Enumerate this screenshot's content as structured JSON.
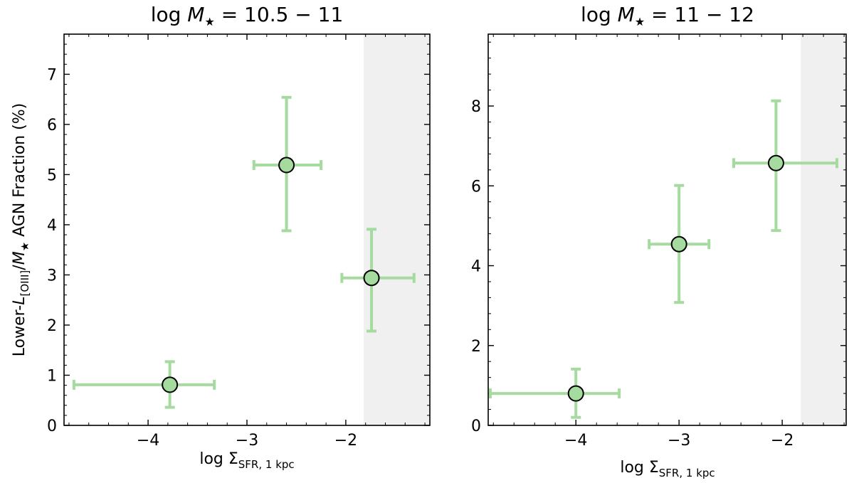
{
  "chart_data": [
    {
      "type": "scatter",
      "title": {
        "prefix": "log ",
        "mass": "M",
        "star": "★",
        "range": " = 10.5 − 11"
      },
      "xlabel": {
        "main": "log Σ",
        "sub": "SFR, 1 kpc"
      },
      "ylabel": {
        "pre": "Lower-",
        "L": "L",
        "Lsub": "[OIII]",
        "slash": "/",
        "M": "M",
        "Msub": "★",
        "post": " AGN Fraction (%)"
      },
      "xlim": [
        -4.85,
        -1.15
      ],
      "ylim": [
        0,
        7.8
      ],
      "xticks": [
        -4,
        -3,
        -2
      ],
      "xtick_labels": [
        "−4",
        "−3",
        "−2"
      ],
      "yticks": [
        0,
        1,
        2,
        3,
        4,
        5,
        6,
        7
      ],
      "ytick_labels": [
        "0",
        "1",
        "2",
        "3",
        "4",
        "5",
        "6",
        "7"
      ],
      "shaded_xmin": -1.82,
      "grid": false,
      "points": [
        {
          "x": -3.78,
          "y": 0.81,
          "xerr": [
            0.97,
            0.45
          ],
          "yerr": [
            0.45,
            0.46
          ]
        },
        {
          "x": -2.6,
          "y": 5.19,
          "xerr": [
            0.33,
            0.35
          ],
          "yerr": [
            1.31,
            1.35
          ]
        },
        {
          "x": -1.74,
          "y": 2.94,
          "xerr": [
            0.3,
            0.43
          ],
          "yerr": [
            1.06,
            0.97
          ]
        }
      ]
    },
    {
      "type": "scatter",
      "title": {
        "prefix": "log ",
        "mass": "M",
        "star": "★",
        "range": " = 11 − 12"
      },
      "xlabel": {
        "main": "log Σ",
        "sub": "SFR, 1 kpc"
      },
      "ylim": [
        0,
        9.8
      ],
      "xlim": [
        -4.85,
        -1.38
      ],
      "xticks": [
        -4,
        -3,
        -2
      ],
      "xtick_labels": [
        "−4",
        "−3",
        "−2"
      ],
      "yticks": [
        0,
        2,
        4,
        6,
        8
      ],
      "ytick_labels": [
        "0",
        "2",
        "4",
        "6",
        "8"
      ],
      "shaded_xmin": -1.82,
      "grid": false,
      "points": [
        {
          "x": -4.0,
          "y": 0.8,
          "xerr": [
            0.83,
            0.42
          ],
          "yerr": [
            0.6,
            0.61
          ]
        },
        {
          "x": -3.0,
          "y": 4.54,
          "xerr": [
            0.29,
            0.29
          ],
          "yerr": [
            1.46,
            1.47
          ]
        },
        {
          "x": -2.06,
          "y": 6.57,
          "xerr": [
            0.41,
            0.59
          ],
          "yerr": [
            1.69,
            1.56
          ]
        }
      ]
    }
  ],
  "style": {
    "point_fill": "#a6dba0",
    "errorbar_color": "#a6dba0",
    "point_edge": "#000000",
    "shade_color": "#f0f0f0"
  }
}
